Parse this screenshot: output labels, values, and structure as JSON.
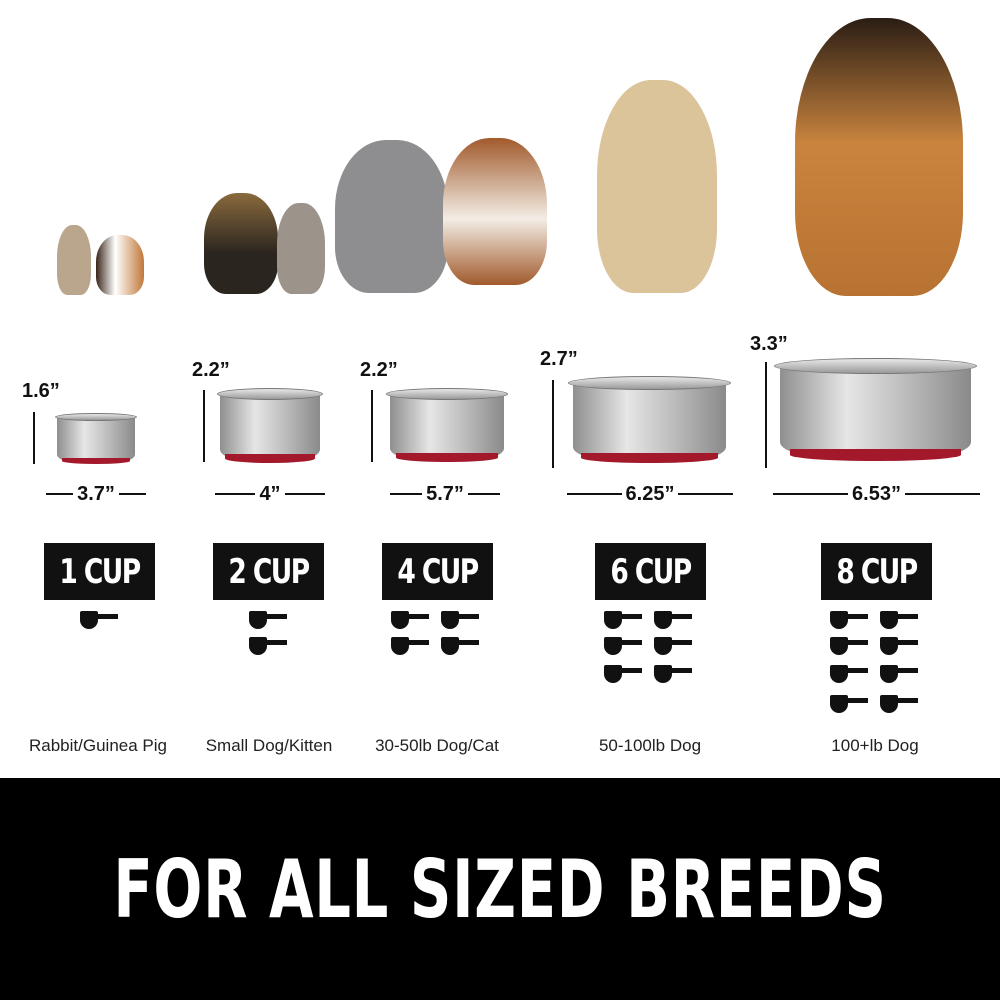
{
  "colors": {
    "bowl_base": "#a3192b",
    "cup_box": "#111111",
    "band": "#000000"
  },
  "sizes": [
    {
      "height": "1.6”",
      "width": "3.7”",
      "cups": "1 CUP",
      "scoops": 1,
      "breed": "Rabbit/Guinea Pig",
      "animals": [
        "rabbit",
        "guinea-pig"
      ]
    },
    {
      "height": "2.2”",
      "width": "4”",
      "cups": "2 CUP",
      "scoops": 2,
      "breed": "Small Dog/Kitten",
      "animals": [
        "yorkie",
        "kitten"
      ]
    },
    {
      "height": "2.2”",
      "width": "5.7”",
      "cups": "4 CUP",
      "scoops": 4,
      "breed": "30-50lb Dog/Cat",
      "animals": [
        "gray-cat",
        "havanese-dog"
      ]
    },
    {
      "height": "2.7”",
      "width": "6.25”",
      "cups": "6 CUP",
      "scoops": 6,
      "breed": "50-100lb Dog",
      "animals": [
        "golden-retriever"
      ]
    },
    {
      "height": "3.3”",
      "width": "6.53”",
      "cups": "8 CUP",
      "scoops": 8,
      "breed": "100+lb Dog",
      "animals": [
        "german-shepherd"
      ]
    }
  ],
  "banner": "FOR ALL SIZED BREEDS"
}
